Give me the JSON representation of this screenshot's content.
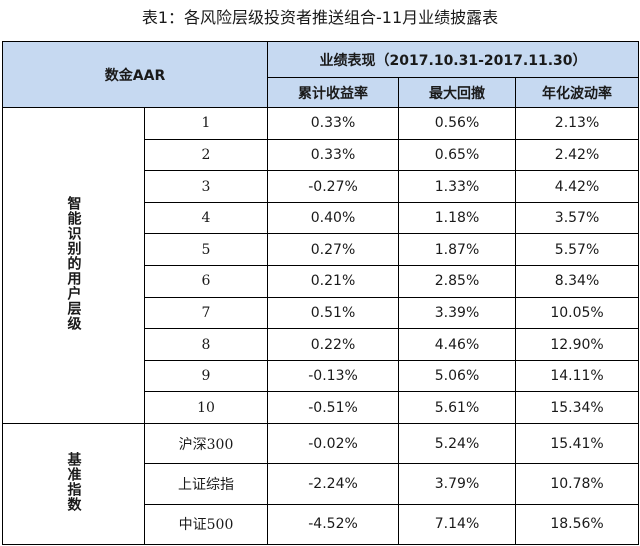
{
  "caption": "表1：各风险层级投资者推送组合-11月业绩披露表",
  "header": {
    "main": "数金AAR",
    "group": "业绩表现（2017.10.31-2017.11.30）",
    "columns": [
      "累计收益率",
      "最大回撤",
      "年化波动率"
    ]
  },
  "section_user": {
    "label": "智能识别的用户层级",
    "rows": [
      {
        "level": "1",
        "cum_return": "0.33%",
        "max_drawdown": "0.56%",
        "volatility": "2.13%"
      },
      {
        "level": "2",
        "cum_return": "0.33%",
        "max_drawdown": "0.65%",
        "volatility": "2.42%"
      },
      {
        "level": "3",
        "cum_return": "-0.27%",
        "max_drawdown": "1.33%",
        "volatility": "4.42%"
      },
      {
        "level": "4",
        "cum_return": "0.40%",
        "max_drawdown": "1.18%",
        "volatility": "3.57%"
      },
      {
        "level": "5",
        "cum_return": "0.27%",
        "max_drawdown": "1.87%",
        "volatility": "5.57%"
      },
      {
        "level": "6",
        "cum_return": "0.21%",
        "max_drawdown": "2.85%",
        "volatility": "8.34%"
      },
      {
        "level": "7",
        "cum_return": "0.51%",
        "max_drawdown": "3.39%",
        "volatility": "10.05%"
      },
      {
        "level": "8",
        "cum_return": "0.22%",
        "max_drawdown": "4.46%",
        "volatility": "12.90%"
      },
      {
        "level": "9",
        "cum_return": "-0.13%",
        "max_drawdown": "5.06%",
        "volatility": "14.11%"
      },
      {
        "level": "10",
        "cum_return": "-0.51%",
        "max_drawdown": "5.61%",
        "volatility": "15.34%"
      }
    ]
  },
  "section_benchmark": {
    "label": "基准指数",
    "rows": [
      {
        "name": "沪深300",
        "cum_return": "-0.02%",
        "max_drawdown": "5.24%",
        "volatility": "15.41%"
      },
      {
        "name": "上证综指",
        "cum_return": "-2.24%",
        "max_drawdown": "3.79%",
        "volatility": "10.78%"
      },
      {
        "name": "中证500",
        "cum_return": "-4.52%",
        "max_drawdown": "7.14%",
        "volatility": "18.56%"
      }
    ]
  },
  "colors": {
    "header_bg": "#c6d9f1",
    "border": "#000000",
    "text": "#1a1a1a"
  }
}
